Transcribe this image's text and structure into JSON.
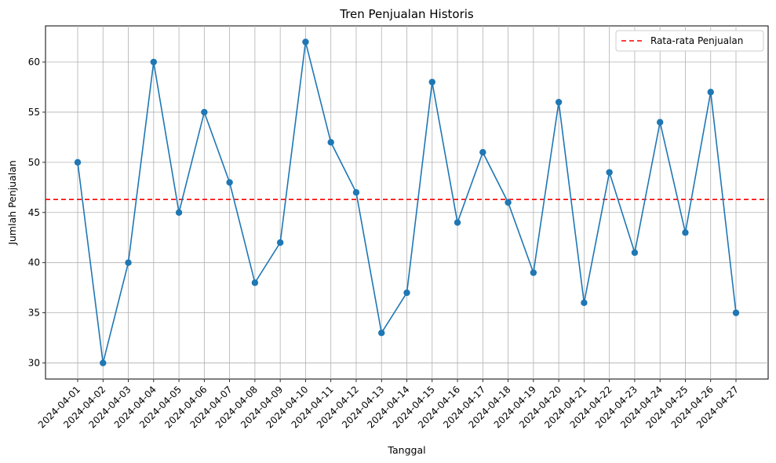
{
  "chart_data": {
    "type": "line",
    "title": "Tren Penjualan Historis",
    "xlabel": "Tanggal",
    "ylabel": "Jumlah Penjualan",
    "categories": [
      "2024-04-01",
      "2024-04-02",
      "2024-04-03",
      "2024-04-04",
      "2024-04-05",
      "2024-04-06",
      "2024-04-07",
      "2024-04-08",
      "2024-04-09",
      "2024-04-10",
      "2024-04-11",
      "2024-04-12",
      "2024-04-13",
      "2024-04-14",
      "2024-04-15",
      "2024-04-16",
      "2024-04-17",
      "2024-04-18",
      "2024-04-19",
      "2024-04-20",
      "2024-04-21",
      "2024-04-22",
      "2024-04-23",
      "2024-04-24",
      "2024-04-25",
      "2024-04-26",
      "2024-04-27"
    ],
    "series": [
      {
        "values": [
          50,
          30,
          40,
          60,
          45,
          55,
          48,
          38,
          42,
          62,
          52,
          47,
          33,
          37,
          58,
          44,
          51,
          46,
          39,
          56,
          36,
          49,
          41,
          54,
          43,
          57,
          35
        ],
        "color": "#1f77b4"
      }
    ],
    "reference_line": {
      "name": "Rata-rata Penjualan",
      "value": 46.3,
      "color": "#ff0000",
      "style": "dashed"
    },
    "ylim": [
      28.4,
      63.6
    ],
    "yticks": [
      30,
      35,
      40,
      45,
      50,
      55,
      60
    ],
    "grid": true,
    "legend_position": "top-right"
  }
}
